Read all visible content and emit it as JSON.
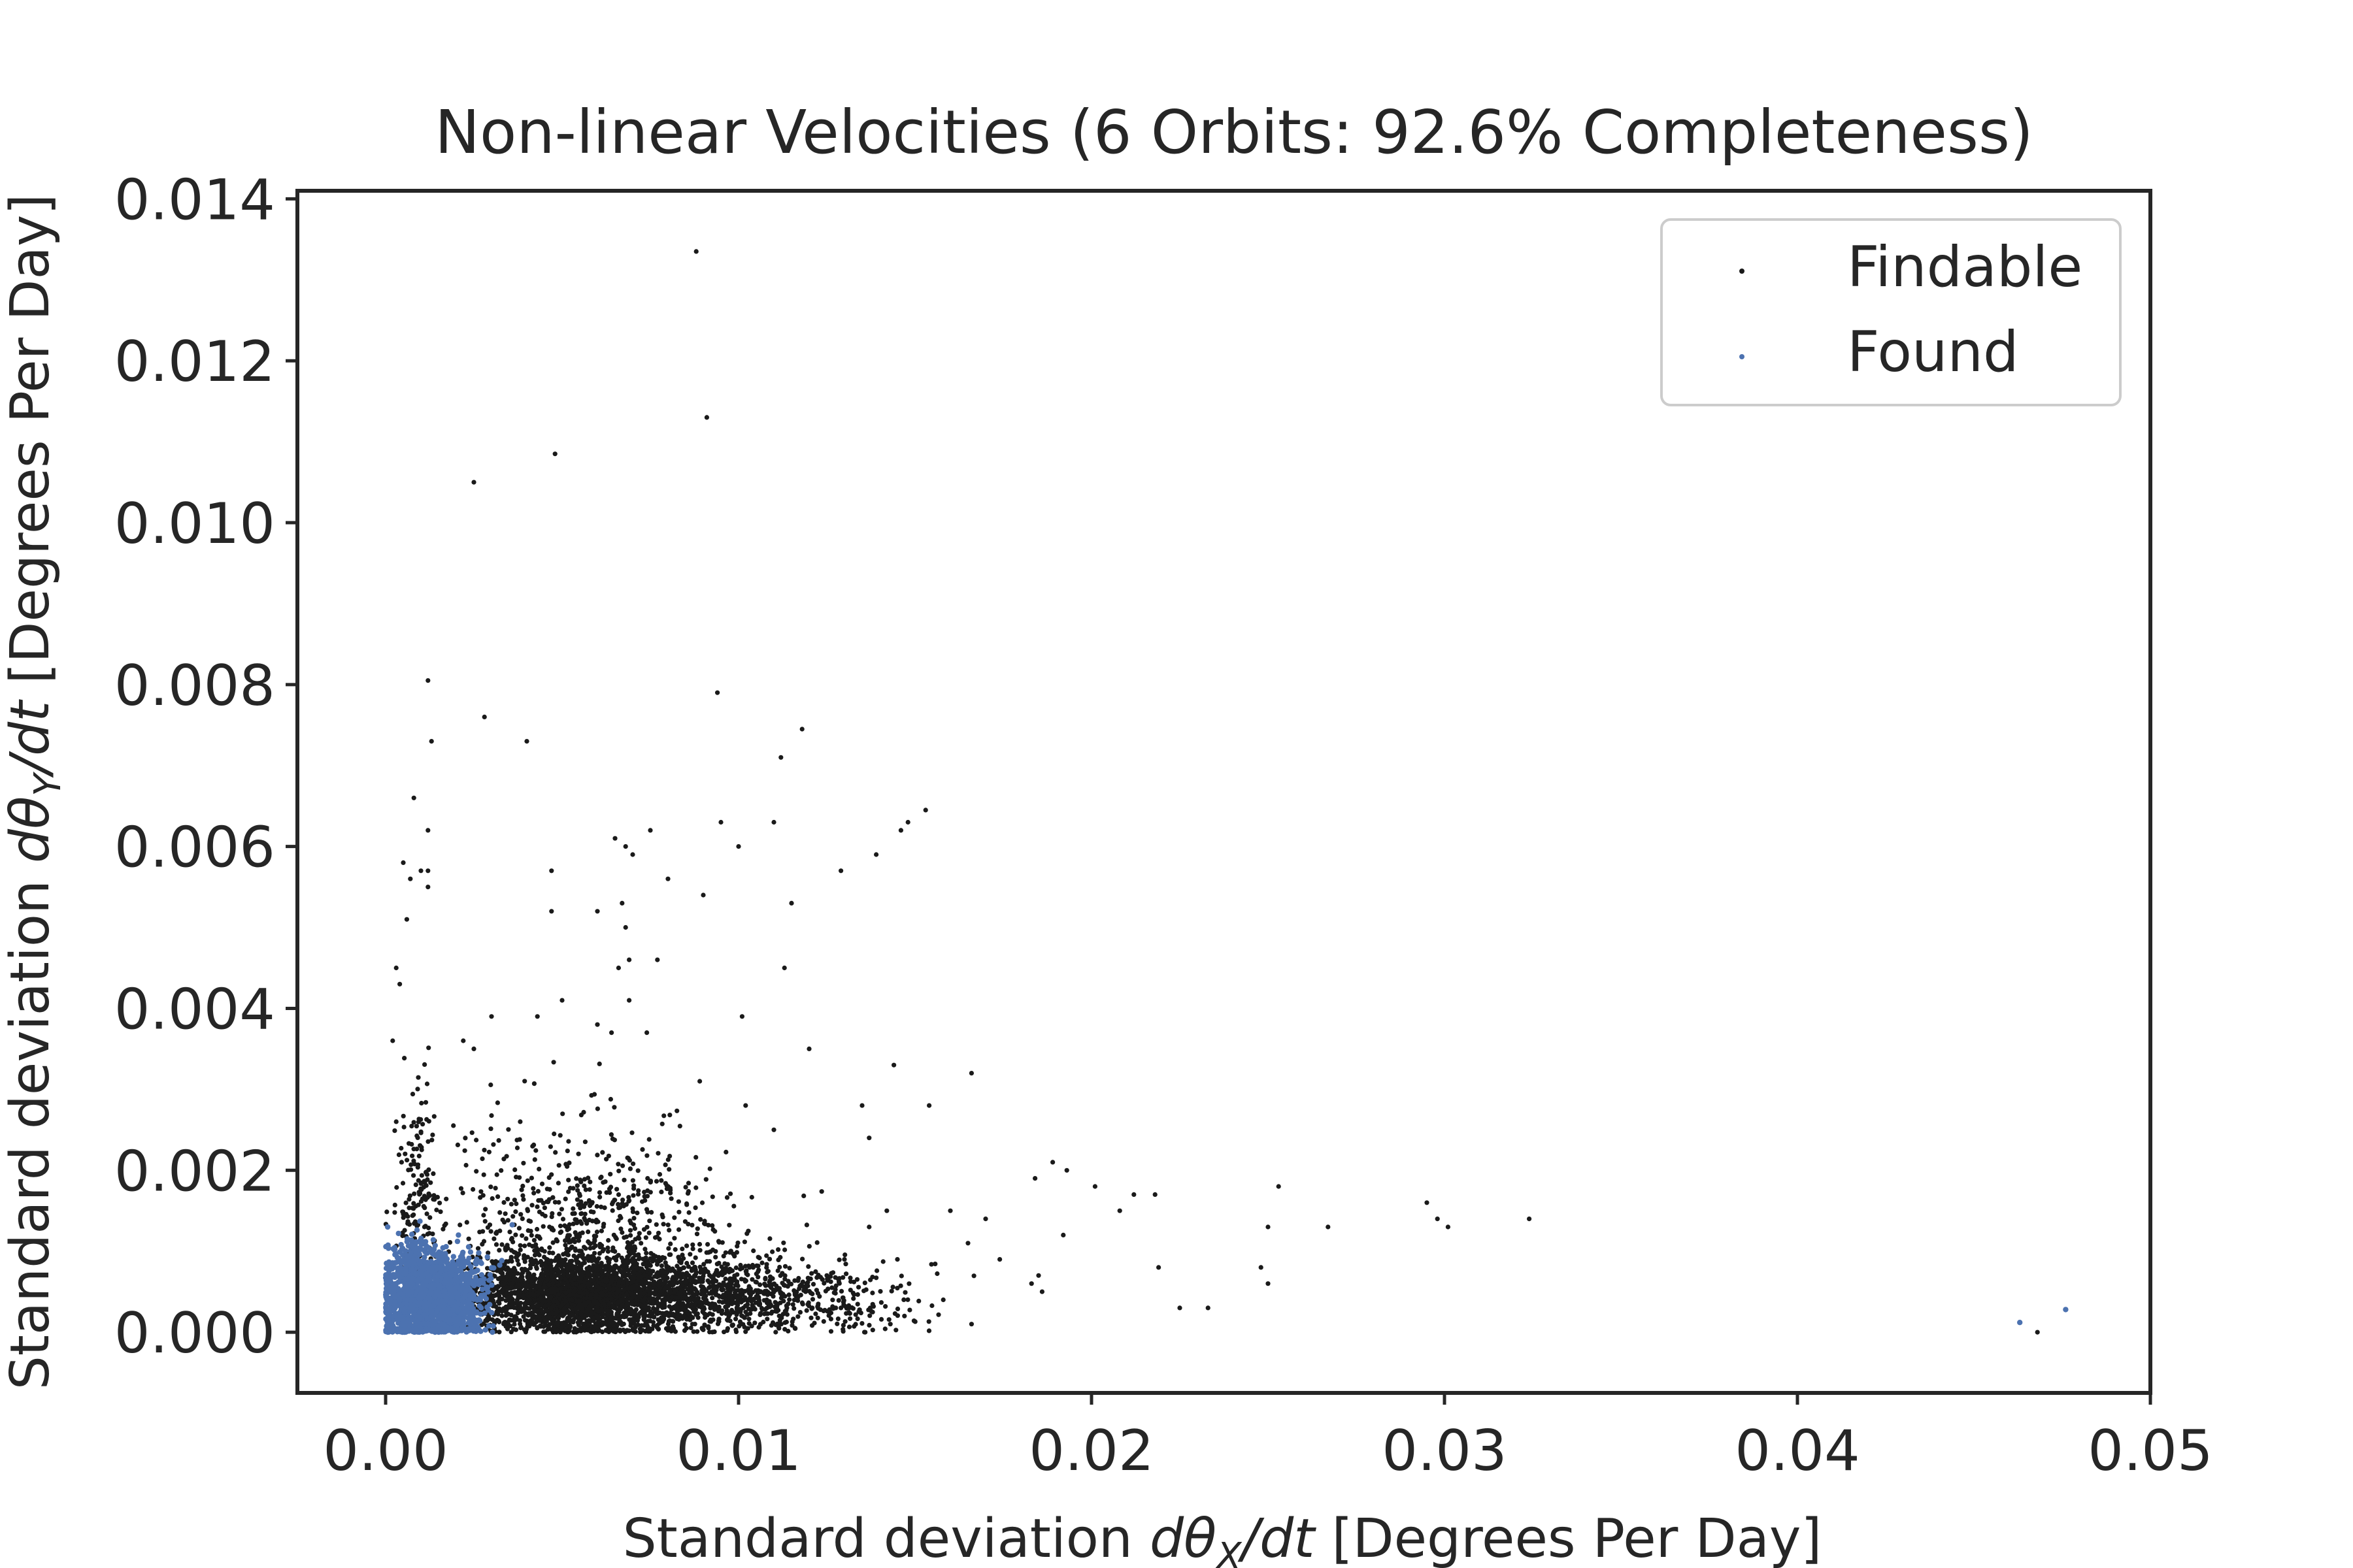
{
  "chart_data": {
    "type": "scatter",
    "title": "Non-linear Velocities (6 Orbits: 92.6% Completeness)",
    "xlabel": {
      "prefix": "Standard deviation ",
      "math_d": "d",
      "math_theta": "θ",
      "math_sub": "X",
      "math_rest": "/dt",
      "suffix": " [Degrees Per Day]"
    },
    "ylabel": {
      "prefix": "Standard deviation ",
      "math_d": "d",
      "math_theta": "θ",
      "math_sub": "Y",
      "math_rest": "/dt",
      "suffix": " [Degrees Per Day]"
    },
    "xlim": [
      -0.0025,
      0.05
    ],
    "ylim": [
      -0.00075,
      0.0141
    ],
    "xticks": [
      {
        "value": 0.0,
        "label": "0.00"
      },
      {
        "value": 0.01,
        "label": "0.01"
      },
      {
        "value": 0.02,
        "label": "0.02"
      },
      {
        "value": 0.03,
        "label": "0.03"
      },
      {
        "value": 0.04,
        "label": "0.04"
      },
      {
        "value": 0.05,
        "label": "0.05"
      }
    ],
    "yticks": [
      {
        "value": 0.0,
        "label": "0.000"
      },
      {
        "value": 0.002,
        "label": "0.002"
      },
      {
        "value": 0.004,
        "label": "0.004"
      },
      {
        "value": 0.006,
        "label": "0.006"
      },
      {
        "value": 0.008,
        "label": "0.008"
      },
      {
        "value": 0.01,
        "label": "0.010"
      },
      {
        "value": 0.012,
        "label": "0.012"
      },
      {
        "value": 0.014,
        "label": "0.014"
      }
    ],
    "grid": false,
    "legend_position": "top-right",
    "series": [
      {
        "name": "Findable",
        "color": "#1a1a1a",
        "points": [
          [
            0.0088,
            0.01335
          ],
          [
            0.0091,
            0.0113
          ],
          [
            0.0048,
            0.01085
          ],
          [
            0.0025,
            0.0105
          ],
          [
            0.0012,
            0.00805
          ],
          [
            0.0028,
            0.0076
          ],
          [
            0.0094,
            0.0079
          ],
          [
            0.0013,
            0.0073
          ],
          [
            0.004,
            0.0073
          ],
          [
            0.0118,
            0.00745
          ],
          [
            0.0112,
            0.0071
          ],
          [
            0.0008,
            0.0066
          ],
          [
            0.0012,
            0.0062
          ],
          [
            0.0153,
            0.00645
          ],
          [
            0.0148,
            0.0063
          ],
          [
            0.0146,
            0.0062
          ],
          [
            0.0075,
            0.0062
          ],
          [
            0.0095,
            0.0063
          ],
          [
            0.01,
            0.006
          ],
          [
            0.011,
            0.0063
          ],
          [
            0.0065,
            0.0061
          ],
          [
            0.0068,
            0.006
          ],
          [
            0.007,
            0.0059
          ],
          [
            0.0005,
            0.0058
          ],
          [
            0.001,
            0.0057
          ],
          [
            0.0012,
            0.0057
          ],
          [
            0.0007,
            0.0056
          ],
          [
            0.0047,
            0.0057
          ],
          [
            0.0129,
            0.0057
          ],
          [
            0.0139,
            0.0059
          ],
          [
            0.008,
            0.0056
          ],
          [
            0.009,
            0.0054
          ],
          [
            0.0115,
            0.0053
          ],
          [
            0.0012,
            0.0055
          ],
          [
            0.0006,
            0.0051
          ],
          [
            0.0067,
            0.0053
          ],
          [
            0.006,
            0.0052
          ],
          [
            0.0047,
            0.0052
          ],
          [
            0.0068,
            0.005
          ],
          [
            0.0069,
            0.0046
          ],
          [
            0.0077,
            0.0046
          ],
          [
            0.0066,
            0.0045
          ],
          [
            0.0113,
            0.0045
          ],
          [
            0.0003,
            0.0045
          ],
          [
            0.0004,
            0.0043
          ],
          [
            0.0069,
            0.0041
          ],
          [
            0.005,
            0.0041
          ],
          [
            0.0101,
            0.0039
          ],
          [
            0.003,
            0.0039
          ],
          [
            0.0043,
            0.0039
          ],
          [
            0.006,
            0.0038
          ],
          [
            0.0074,
            0.0037
          ],
          [
            0.0064,
            0.0037
          ],
          [
            0.0002,
            0.0036
          ],
          [
            0.0022,
            0.0036
          ],
          [
            0.0025,
            0.0035
          ],
          [
            0.012,
            0.0035
          ],
          [
            0.0144,
            0.0033
          ],
          [
            0.0166,
            0.0032
          ],
          [
            0.0089,
            0.0031
          ],
          [
            0.0135,
            0.0028
          ],
          [
            0.0154,
            0.0028
          ],
          [
            0.0102,
            0.0028
          ],
          [
            0.0003,
            0.0026
          ],
          [
            0.011,
            0.0025
          ],
          [
            0.0137,
            0.0024
          ],
          [
            0.0189,
            0.0021
          ],
          [
            0.0193,
            0.002
          ],
          [
            0.0184,
            0.0019
          ],
          [
            0.0201,
            0.0018
          ],
          [
            0.0212,
            0.0017
          ],
          [
            0.0218,
            0.0017
          ],
          [
            0.0253,
            0.0018
          ],
          [
            0.0295,
            0.0016
          ],
          [
            0.0298,
            0.0014
          ],
          [
            0.0301,
            0.0013
          ],
          [
            0.0324,
            0.0014
          ],
          [
            0.025,
            0.0013
          ],
          [
            0.0267,
            0.0013
          ],
          [
            0.0208,
            0.0015
          ],
          [
            0.0192,
            0.0012
          ],
          [
            0.0219,
            0.0008
          ],
          [
            0.0225,
            0.0003
          ],
          [
            0.0233,
            0.0003
          ],
          [
            0.0248,
            0.0008
          ],
          [
            0.025,
            0.0006
          ],
          [
            0.0468,
            0.0
          ],
          [
            0.017,
            0.0014
          ],
          [
            0.0165,
            0.0011
          ],
          [
            0.016,
            0.0015
          ],
          [
            0.0174,
            0.0009
          ],
          [
            0.0158,
            0.0004
          ],
          [
            0.0166,
            0.0001
          ],
          [
            0.0142,
            0.0015
          ],
          [
            0.0137,
            0.0013
          ],
          [
            0.0145,
            0.0009
          ],
          [
            0.013,
            0.0009
          ],
          [
            0.0125,
            0.0007
          ],
          [
            0.0129,
            0.0003
          ],
          [
            0.0143,
            0.0001
          ],
          [
            0.0147,
            0.0002
          ],
          [
            0.0183,
            0.0006
          ],
          [
            0.0185,
            0.0007
          ],
          [
            0.0186,
            0.0005
          ]
        ],
        "dense_regions": [
          {
            "cx": 0.0058,
            "cy": 0.00045,
            "rx": 0.0036,
            "ry": 0.00048,
            "count": 2600,
            "y_floor": 0.0
          },
          {
            "cx": 0.0055,
            "cy": 0.001,
            "rx": 0.0045,
            "ry": 0.0011,
            "count": 700,
            "y_floor": 0.0
          },
          {
            "cx": 0.0055,
            "cy": 0.0018,
            "rx": 0.004,
            "ry": 0.0012,
            "count": 180,
            "y_floor": 0.0
          },
          {
            "cx": 0.01,
            "cy": 0.0005,
            "rx": 0.0025,
            "ry": 0.0005,
            "count": 500,
            "y_floor": 0.0
          },
          {
            "cx": 0.013,
            "cy": 0.0004,
            "rx": 0.0025,
            "ry": 0.0005,
            "count": 160,
            "y_floor": 0.0
          },
          {
            "cx": 0.0009,
            "cy": 0.0016,
            "rx": 0.0006,
            "ry": 0.0014,
            "count": 160,
            "y_floor": 0.0
          }
        ]
      },
      {
        "name": "Found",
        "color": "#4c72b0",
        "points": [
          [
            0.0463,
            0.00012
          ],
          [
            0.0476,
            0.00028
          ]
        ],
        "dense_regions": [
          {
            "cx": 0.0013,
            "cy": 0.0004,
            "rx": 0.0014,
            "ry": 0.0006,
            "count": 1800,
            "y_floor": 0.0
          },
          {
            "cx": 0.0008,
            "cy": 0.0009,
            "rx": 0.0007,
            "ry": 0.0003,
            "count": 80,
            "y_floor": 0.0
          }
        ]
      }
    ]
  }
}
